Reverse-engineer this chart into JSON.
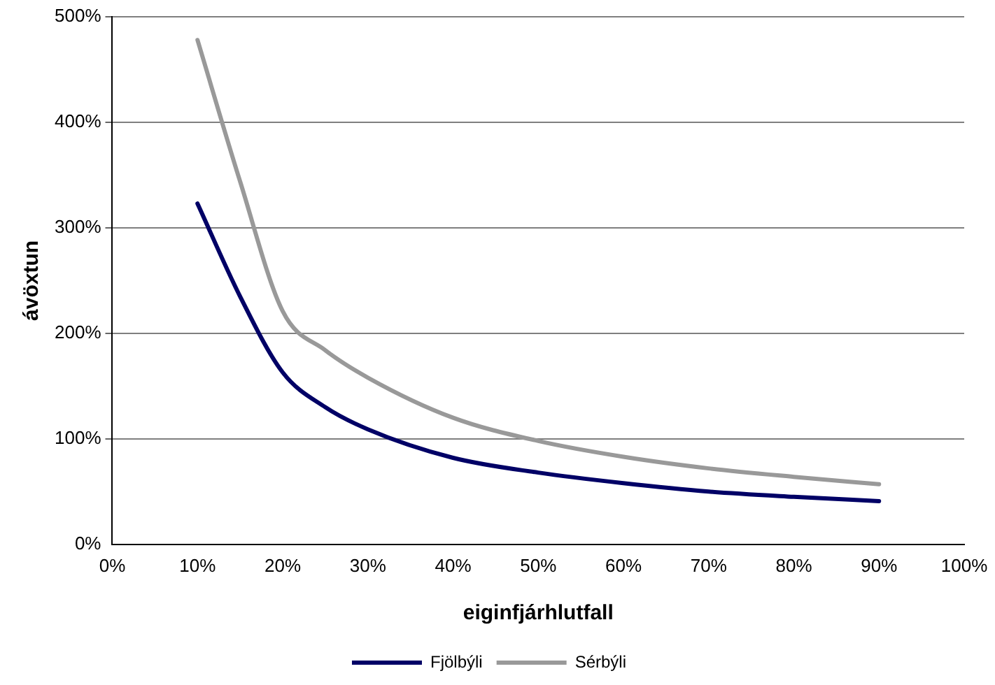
{
  "chart_data": {
    "type": "line",
    "xlabel": "eiginfjárhlutfall",
    "ylabel": "ávöxtun",
    "xlim": [
      0,
      100
    ],
    "ylim": [
      0,
      500
    ],
    "xticks": [
      {
        "value": 0,
        "label": "0%"
      },
      {
        "value": 10,
        "label": "10%"
      },
      {
        "value": 20,
        "label": "20%"
      },
      {
        "value": 30,
        "label": "30%"
      },
      {
        "value": 40,
        "label": "40%"
      },
      {
        "value": 50,
        "label": "50%"
      },
      {
        "value": 60,
        "label": "60%"
      },
      {
        "value": 70,
        "label": "70%"
      },
      {
        "value": 80,
        "label": "80%"
      },
      {
        "value": 90,
        "label": "90%"
      },
      {
        "value": 100,
        "label": "100%"
      }
    ],
    "yticks": [
      {
        "value": 0,
        "label": "0%"
      },
      {
        "value": 100,
        "label": "100%"
      },
      {
        "value": 200,
        "label": "200%"
      },
      {
        "value": 300,
        "label": "300%"
      },
      {
        "value": 400,
        "label": "400%"
      },
      {
        "value": 500,
        "label": "500%"
      }
    ],
    "grid": "y",
    "legend": "bottom",
    "marker": "none",
    "line_style": "solid",
    "series": [
      {
        "name": "Fjölbýli",
        "color": "#000066",
        "x": [
          10,
          15,
          20,
          25,
          30,
          40,
          50,
          60,
          70,
          80,
          90
        ],
        "values": [
          323,
          235,
          163,
          130,
          109,
          82,
          68,
          58,
          50,
          45,
          41
        ]
      },
      {
        "name": "Sérbýli",
        "color": "#999999",
        "x": [
          10,
          15,
          20,
          25,
          30,
          40,
          50,
          60,
          70,
          80,
          90
        ],
        "values": [
          478,
          344,
          221,
          184,
          158,
          120,
          98,
          83,
          72,
          64,
          57
        ]
      }
    ]
  }
}
